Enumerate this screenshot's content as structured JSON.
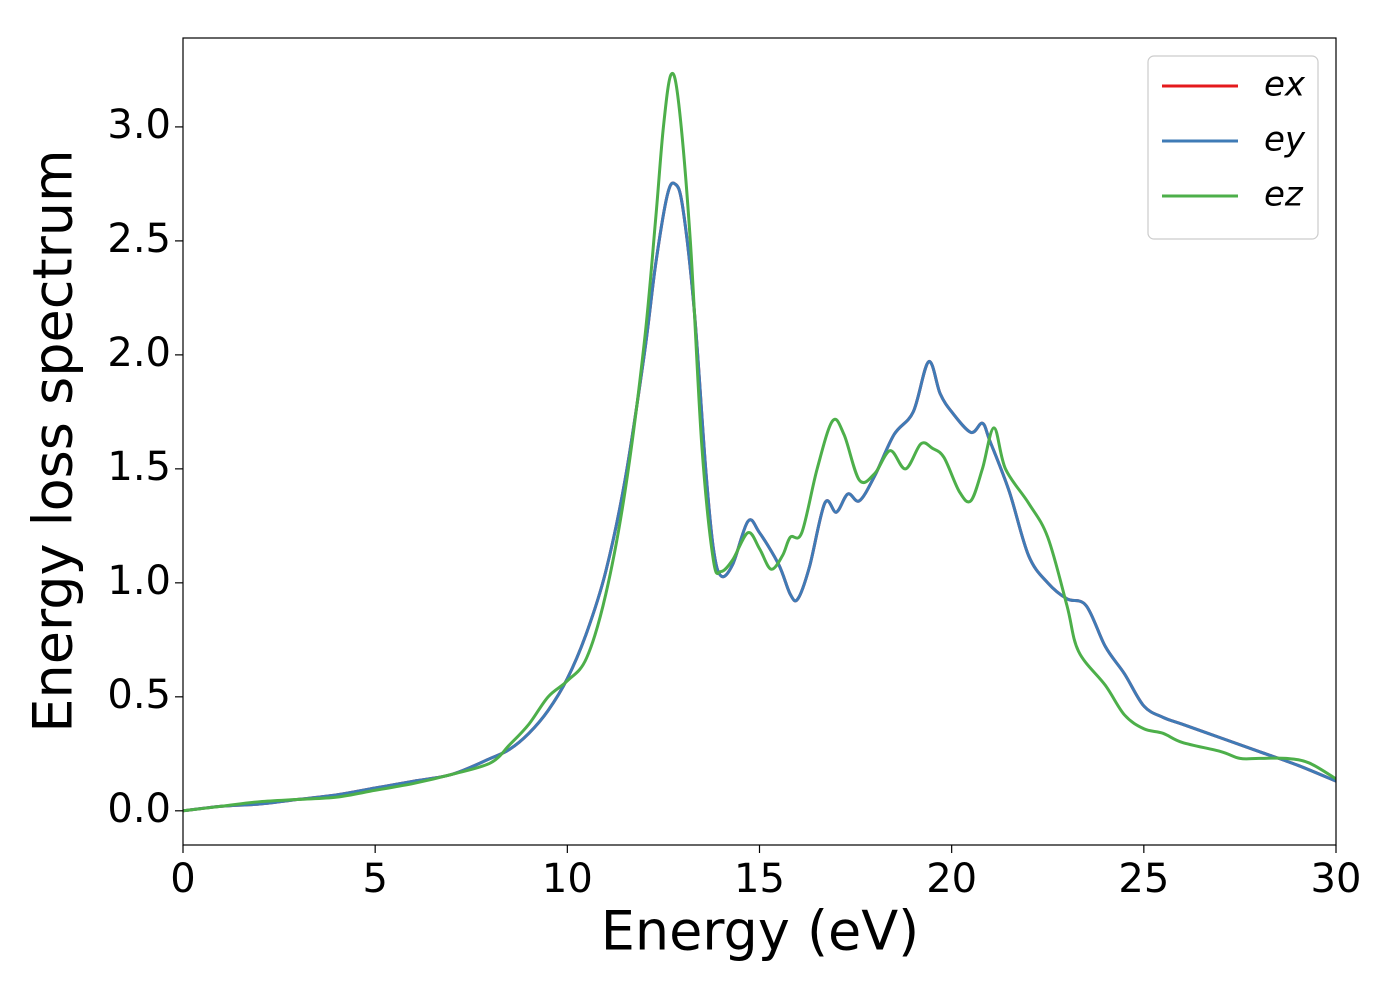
{
  "chart_data": {
    "type": "line",
    "xlabel": "Energy (eV)",
    "ylabel": "Energy loss spectrum",
    "xlim": [
      0,
      30
    ],
    "xticks": [
      0,
      5,
      10,
      15,
      20,
      25,
      30
    ],
    "ylim": [
      -0.15,
      3.39
    ],
    "yticks": [
      {
        "value": 0,
        "label": "0.0"
      },
      {
        "value": 0.5,
        "label": "0.5"
      },
      {
        "value": 1,
        "label": "1.0"
      },
      {
        "value": 1.5,
        "label": "1.5"
      },
      {
        "value": 2,
        "label": "2.0"
      },
      {
        "value": 2.5,
        "label": "2.5"
      },
      {
        "value": 3,
        "label": "3.0"
      }
    ],
    "legend": "upper right",
    "series": [
      {
        "name": "ex",
        "color": "#e41a1c",
        "x": [
          0,
          1,
          2,
          3,
          4,
          5,
          6,
          7,
          8,
          8.5,
          9,
          9.5,
          10,
          10.5,
          11,
          11.5,
          12,
          12.3,
          12.6,
          12.8,
          13,
          13.3,
          13.6,
          13.8,
          14,
          14.3,
          14.7,
          15,
          15.5,
          15.8,
          16,
          16.3,
          16.7,
          17,
          17.3,
          17.6,
          18,
          18.5,
          19,
          19.4,
          19.7,
          20,
          20.5,
          20.8,
          21,
          21.5,
          22,
          22.5,
          23,
          23.5,
          24,
          24.5,
          25,
          25.5,
          26,
          27,
          28,
          29,
          30
        ],
        "values": [
          0,
          0.02,
          0.03,
          0.05,
          0.07,
          0.1,
          0.13,
          0.16,
          0.23,
          0.27,
          0.34,
          0.44,
          0.58,
          0.78,
          1.05,
          1.45,
          2.0,
          2.4,
          2.7,
          2.75,
          2.65,
          2.2,
          1.5,
          1.15,
          1.03,
          1.08,
          1.27,
          1.22,
          1.08,
          0.95,
          0.93,
          1.07,
          1.35,
          1.31,
          1.39,
          1.36,
          1.47,
          1.65,
          1.75,
          1.97,
          1.83,
          1.75,
          1.66,
          1.7,
          1.62,
          1.4,
          1.12,
          1.0,
          0.93,
          0.9,
          0.72,
          0.6,
          0.46,
          0.41,
          0.38,
          0.32,
          0.26,
          0.2,
          0.13
        ]
      },
      {
        "name": "ey",
        "color": "#3f7bb6",
        "x": [
          0,
          1,
          2,
          3,
          4,
          5,
          6,
          7,
          8,
          8.5,
          9,
          9.5,
          10,
          10.5,
          11,
          11.5,
          12,
          12.3,
          12.6,
          12.8,
          13,
          13.3,
          13.6,
          13.8,
          14,
          14.3,
          14.7,
          15,
          15.5,
          15.8,
          16,
          16.3,
          16.7,
          17,
          17.3,
          17.6,
          18,
          18.5,
          19,
          19.4,
          19.7,
          20,
          20.5,
          20.8,
          21,
          21.5,
          22,
          22.5,
          23,
          23.5,
          24,
          24.5,
          25,
          25.5,
          26,
          27,
          28,
          29,
          30
        ],
        "values": [
          0,
          0.02,
          0.03,
          0.05,
          0.07,
          0.1,
          0.13,
          0.16,
          0.23,
          0.27,
          0.34,
          0.44,
          0.58,
          0.78,
          1.05,
          1.45,
          2.0,
          2.4,
          2.7,
          2.75,
          2.65,
          2.2,
          1.5,
          1.15,
          1.03,
          1.08,
          1.27,
          1.22,
          1.08,
          0.95,
          0.93,
          1.07,
          1.35,
          1.31,
          1.39,
          1.36,
          1.47,
          1.65,
          1.75,
          1.97,
          1.83,
          1.75,
          1.66,
          1.7,
          1.62,
          1.4,
          1.12,
          1.0,
          0.93,
          0.9,
          0.72,
          0.6,
          0.46,
          0.41,
          0.38,
          0.32,
          0.26,
          0.2,
          0.13
        ]
      },
      {
        "name": "ez",
        "color": "#4daf4a",
        "x": [
          0,
          1,
          2,
          3,
          4,
          5,
          6,
          7,
          8,
          8.5,
          9,
          9.5,
          10,
          10.5,
          11,
          11.5,
          12,
          12.3,
          12.5,
          12.7,
          12.9,
          13.2,
          13.5,
          13.8,
          14,
          14.3,
          14.7,
          15,
          15.3,
          15.6,
          15.8,
          16.1,
          16.5,
          16.9,
          17.2,
          17.6,
          18,
          18.4,
          18.8,
          19.2,
          19.5,
          19.8,
          20.2,
          20.5,
          20.8,
          21.1,
          21.4,
          22,
          22.5,
          23,
          23.3,
          24,
          24.5,
          25,
          25.5,
          26,
          27,
          27.5,
          28,
          28.7,
          29.3,
          30
        ],
        "values": [
          0,
          0.02,
          0.04,
          0.05,
          0.06,
          0.09,
          0.12,
          0.16,
          0.21,
          0.29,
          0.38,
          0.5,
          0.57,
          0.67,
          0.95,
          1.4,
          2.05,
          2.6,
          3.0,
          3.23,
          3.1,
          2.5,
          1.6,
          1.1,
          1.05,
          1.1,
          1.22,
          1.15,
          1.06,
          1.12,
          1.2,
          1.22,
          1.5,
          1.71,
          1.65,
          1.45,
          1.48,
          1.58,
          1.5,
          1.61,
          1.59,
          1.55,
          1.4,
          1.36,
          1.5,
          1.68,
          1.5,
          1.35,
          1.2,
          0.9,
          0.7,
          0.55,
          0.42,
          0.36,
          0.34,
          0.3,
          0.26,
          0.23,
          0.23,
          0.23,
          0.21,
          0.14
        ]
      }
    ]
  }
}
